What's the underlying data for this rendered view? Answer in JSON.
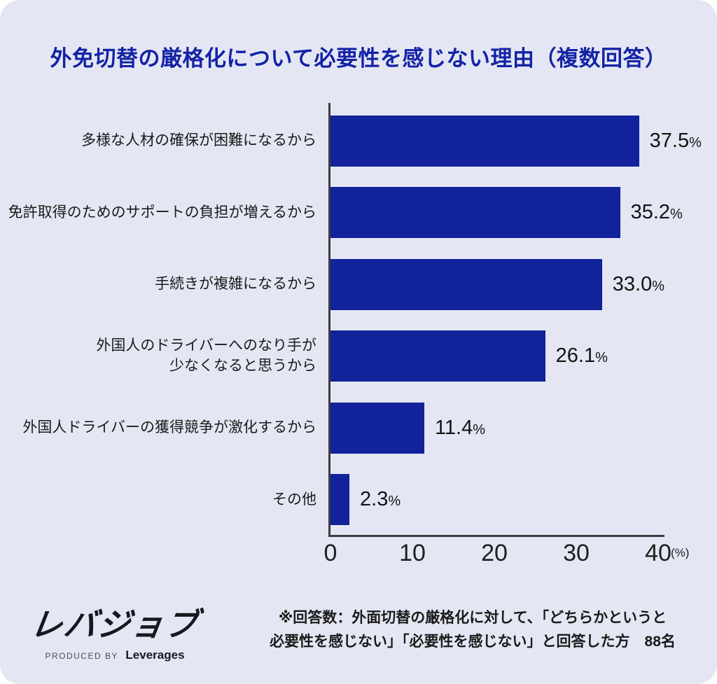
{
  "title": "外免切替の厳格化について必要性を感じない理由（複数回答）",
  "units": {
    "percent": "%"
  },
  "chart_data": {
    "type": "bar",
    "orientation": "horizontal",
    "title": "外免切替の厳格化について必要性を感じない理由（複数回答）",
    "xlim": [
      0,
      40
    ],
    "x_ticks": [
      "0",
      "10",
      "20",
      "30",
      "40"
    ],
    "x_unit": "(%)",
    "grid": false,
    "legend": "none",
    "categories": [
      "多様な人材の確保が困難になるから",
      "免許取得のためのサポートの負担が増えるから",
      "手続きが複雑になるから",
      "外国人のドライバーへのなり手が\n少なくなると思うから",
      "外国人ドライバーの獲得競争が激化するから",
      "その他"
    ],
    "values": [
      37.5,
      35.2,
      33.0,
      26.1,
      11.4,
      2.3
    ],
    "rows": [
      {
        "label": "多様な人材の確保が困難になるから",
        "value": 37.5,
        "value_label": "37.5"
      },
      {
        "label": "免許取得のためのサポートの負担が増えるから",
        "value": 35.2,
        "value_label": "35.2"
      },
      {
        "label": "手続きが複雑になるから",
        "value": 33.0,
        "value_label": "33.0"
      },
      {
        "label": "外国人のドライバーへのなり手が\n少なくなると思うから",
        "value": 26.1,
        "value_label": "26.1"
      },
      {
        "label": "外国人ドライバーの獲得競争が激化するから",
        "value": 11.4,
        "value_label": "11.4"
      },
      {
        "label": "その他",
        "value": 2.3,
        "value_label": "2.3"
      }
    ]
  },
  "footer": {
    "logo_text": "レバジョブ",
    "logo_sub_prefix": "PRODUCED BY",
    "logo_sub_brand": "Leverages",
    "note": "※回答数：外面切替の厳格化に対して、「どちらかというと\n必要性を感じない」「必要性を感じない」と回答した方　88名"
  },
  "colors": {
    "bg": "#E4E7F3",
    "bar": "#12229B",
    "title": "#1423A5",
    "text": "#1A1A1A",
    "axis": "#3C3C3C",
    "logo": "#17171F"
  }
}
